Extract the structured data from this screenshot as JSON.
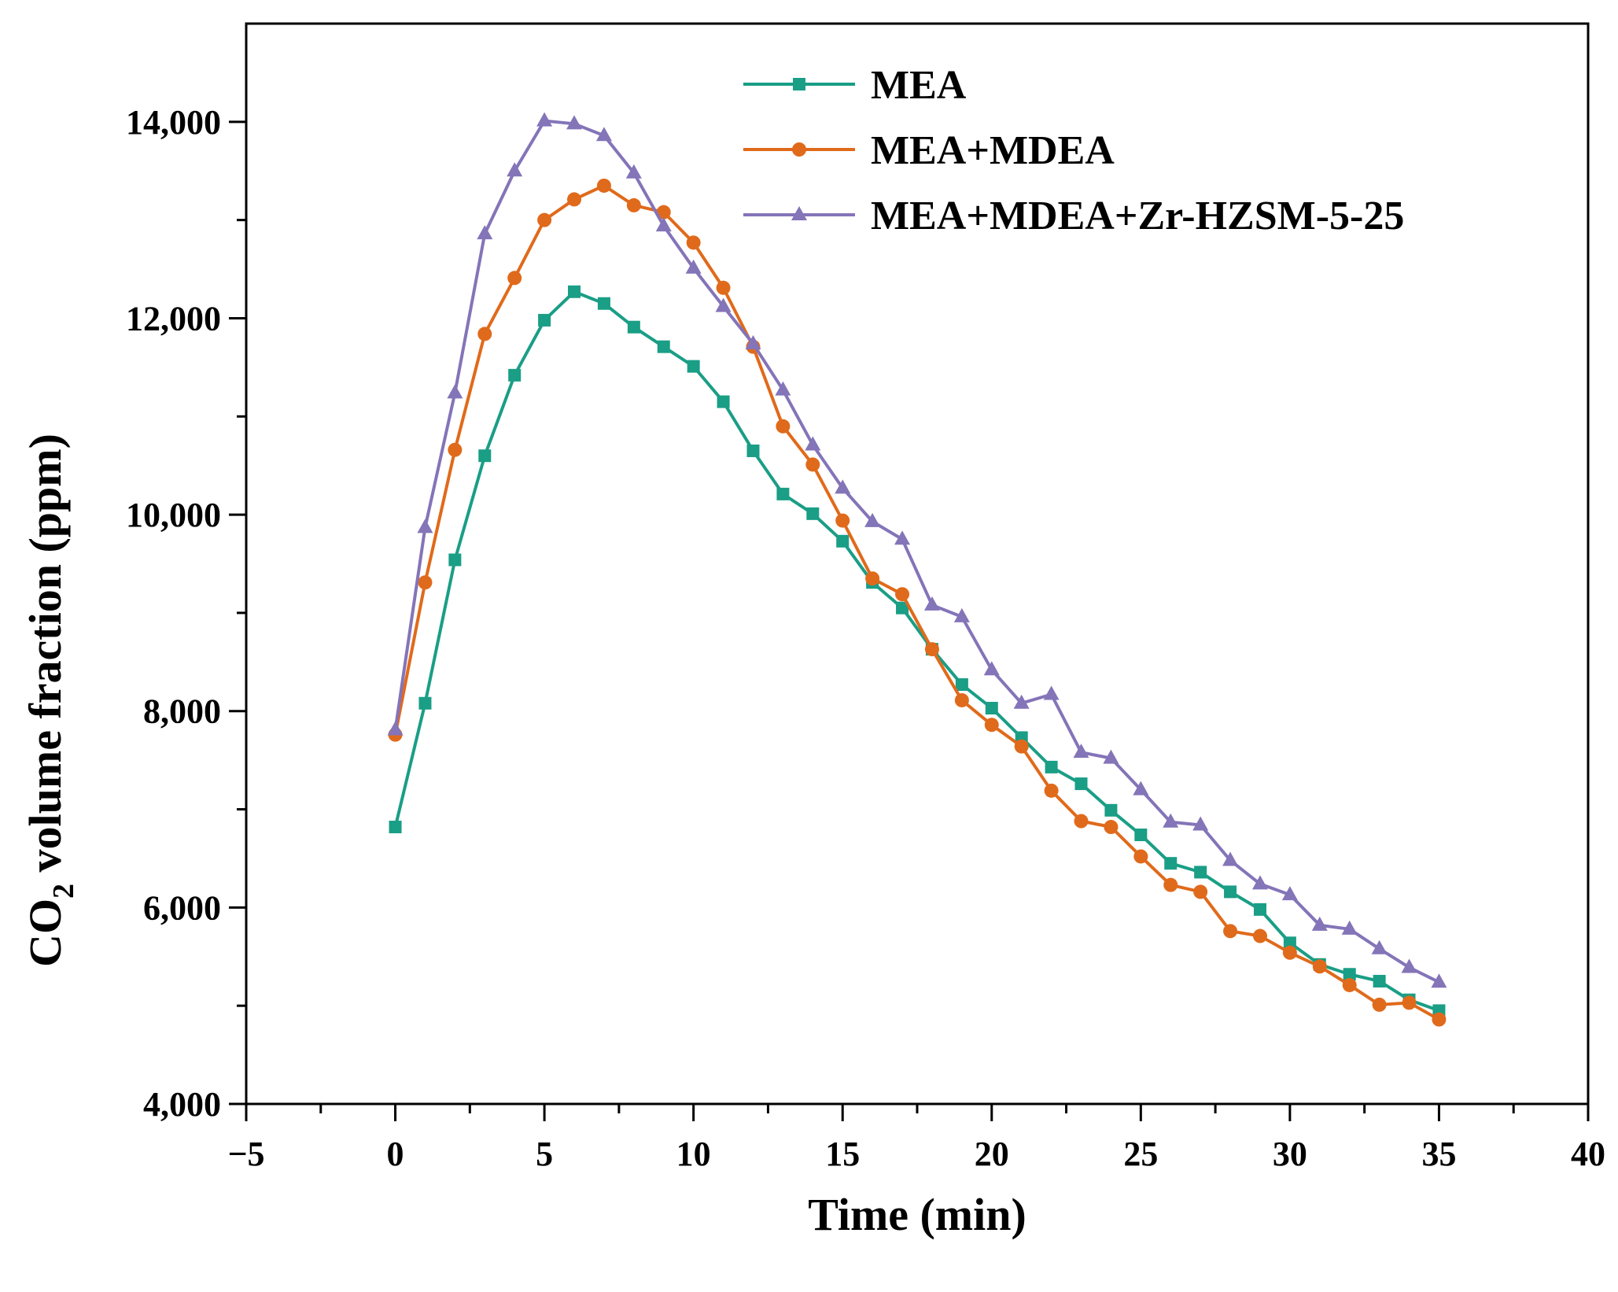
{
  "chart_data": {
    "type": "line",
    "title": "",
    "xlabel": "Time (min)",
    "ylabel_main": "CO",
    "ylabel_sub": "2",
    "ylabel_rest": " volume fraction (ppm)",
    "xlim": [
      -5,
      40
    ],
    "ylim": [
      4000,
      15000
    ],
    "x_ticks": [
      -5,
      0,
      5,
      10,
      15,
      20,
      25,
      30,
      35,
      40
    ],
    "x_tick_labels": [
      "−5",
      "0",
      "5",
      "10",
      "15",
      "20",
      "25",
      "30",
      "35",
      "40"
    ],
    "y_ticks": [
      4000,
      6000,
      8000,
      10000,
      12000,
      14000
    ],
    "y_tick_labels": [
      "4,000",
      "6,000",
      "8,000",
      "10,000",
      "12,000",
      "14,000"
    ],
    "legend_position": "top",
    "x": [
      0,
      1,
      2,
      3,
      4,
      5,
      6,
      7,
      8,
      9,
      10,
      11,
      12,
      13,
      14,
      15,
      16,
      17,
      18,
      19,
      20,
      21,
      22,
      23,
      24,
      25,
      26,
      27,
      28,
      29,
      30,
      31,
      32,
      33,
      34,
      35
    ],
    "series": [
      {
        "name": "MEA",
        "color": "#1a9e86",
        "marker": "square",
        "values": [
          6820,
          8080,
          9540,
          10600,
          11420,
          11980,
          12270,
          12150,
          11910,
          11710,
          11510,
          11150,
          10650,
          10210,
          10010,
          9730,
          9310,
          9050,
          8630,
          8270,
          8030,
          7730,
          7430,
          7260,
          6990,
          6740,
          6450,
          6360,
          6160,
          5980,
          5640,
          5420,
          5320,
          5250,
          5060,
          4950
        ]
      },
      {
        "name": "MEA+MDEA",
        "color": "#e06a1b",
        "marker": "circle",
        "values": [
          7760,
          9310,
          10660,
          11840,
          12410,
          13000,
          13210,
          13350,
          13150,
          13080,
          12770,
          12310,
          11710,
          10900,
          10510,
          9940,
          9350,
          9190,
          8630,
          8110,
          7860,
          7640,
          7190,
          6880,
          6820,
          6520,
          6230,
          6160,
          5760,
          5710,
          5540,
          5400,
          5210,
          5010,
          5030,
          4860
        ]
      },
      {
        "name": "MEA+MDEA+Zr-HZSM-5-25",
        "color": "#8474b8",
        "marker": "triangle",
        "values": [
          7810,
          9870,
          11240,
          12860,
          13500,
          14010,
          13980,
          13860,
          13480,
          12940,
          12510,
          12120,
          11740,
          11270,
          10710,
          10270,
          9930,
          9750,
          9080,
          8960,
          8420,
          8080,
          8170,
          7580,
          7520,
          7200,
          6870,
          6840,
          6480,
          6240,
          6130,
          5820,
          5780,
          5580,
          5390,
          5240
        ]
      }
    ]
  }
}
